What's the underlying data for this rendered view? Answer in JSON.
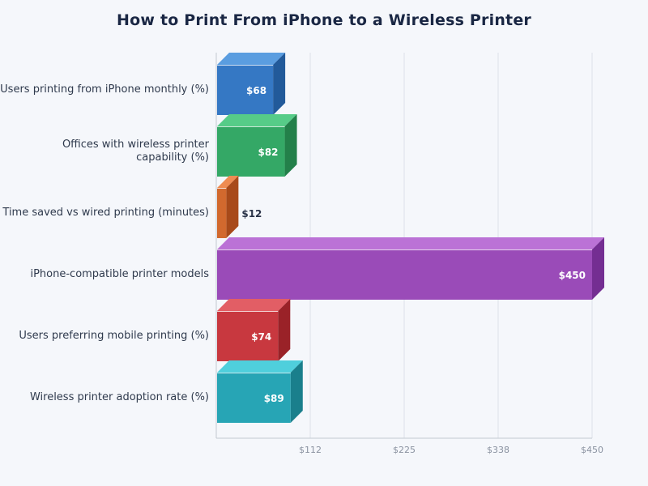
{
  "title": "How to Print From iPhone to a Wireless Printer",
  "chart_data": {
    "type": "bar",
    "orientation": "horizontal",
    "style": "3d",
    "title": "How to Print From iPhone to a Wireless Printer",
    "xlabel": "",
    "ylabel": "",
    "xlim": [
      0,
      450
    ],
    "grid": true,
    "legend": null,
    "x_ticks": [
      "$112",
      "$225",
      "$338",
      "$450"
    ],
    "x_tick_values": [
      112.5,
      225,
      337.5,
      450
    ],
    "categories": [
      "Users printing from iPhone monthly (%)",
      "Offices with wireless printer capability (%)",
      "Time saved vs wired printing (minutes)",
      "iPhone-compatible printer models",
      "Users preferring mobile printing (%)",
      "Wireless printer adoption rate (%)"
    ],
    "values": [
      68,
      82,
      12,
      450,
      74,
      89
    ],
    "value_labels": [
      "$68",
      "$82",
      "$12",
      "$450",
      "$74",
      "$89"
    ],
    "colors": [
      "#3578c4",
      "#34a866",
      "#d2692e",
      "#9a4bb8",
      "#c8383f",
      "#27a5b5"
    ]
  },
  "bars": [
    {
      "label_lines": [
        "Users printing from iPhone monthly (%)"
      ],
      "value": 68,
      "text": "$68",
      "front": "#3578c4",
      "top": "#5a9de0",
      "side": "#225a9a"
    },
    {
      "label_lines": [
        "Offices with wireless printer",
        "capability (%)"
      ],
      "value": 82,
      "text": "$82",
      "front": "#34a866",
      "top": "#56cc88",
      "side": "#23804a"
    },
    {
      "label_lines": [
        "Time saved vs wired printing (minutes)"
      ],
      "value": 12,
      "text": "$12",
      "front": "#d2692e",
      "top": "#ee8c52",
      "side": "#a84a1a"
    },
    {
      "label_lines": [
        "iPhone-compatible printer models"
      ],
      "value": 450,
      "text": "$450",
      "front": "#9a4bb8",
      "top": "#bb72d6",
      "side": "#742e92"
    },
    {
      "label_lines": [
        "Users preferring mobile printing (%)"
      ],
      "value": 74,
      "text": "$74",
      "front": "#c8383f",
      "top": "#e25e65",
      "side": "#9a2228"
    },
    {
      "label_lines": [
        "Wireless printer adoption rate (%)"
      ],
      "value": 89,
      "text": "$89",
      "front": "#27a5b5",
      "top": "#4fcfdc",
      "side": "#1a7f8c"
    }
  ],
  "colors": {
    "background": "#f5f7fb",
    "title": "#1a2744",
    "axis": "#c4c9d2",
    "grid": "#dde2ea",
    "tick_text": "#8a92a0",
    "category_text": "#2f3a4d",
    "inside_label": "#ffffff",
    "outside_label": "#2a3348"
  }
}
